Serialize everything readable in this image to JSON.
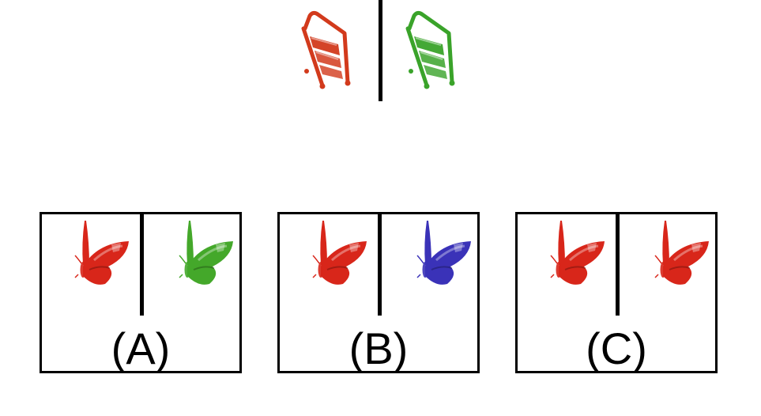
{
  "example": {
    "left_icon": "red-steps-icon",
    "right_icon": "green-steps-icon",
    "left_color": "#d23a1c",
    "right_color": "#3aa32a"
  },
  "options": [
    {
      "label": "(A)",
      "left_icon": "red-butterfly-icon",
      "right_icon": "green-butterfly-icon",
      "left_color": "#d8261a",
      "right_color": "#44a82a"
    },
    {
      "label": "(B)",
      "left_icon": "red-butterfly-icon",
      "right_icon": "blue-butterfly-icon",
      "left_color": "#d8261a",
      "right_color": "#3a32b8"
    },
    {
      "label": "(C)",
      "left_icon": "red-butterfly-icon",
      "right_icon": "red-butterfly-icon",
      "left_color": "#d8261a",
      "right_color": "#d8261a"
    }
  ]
}
